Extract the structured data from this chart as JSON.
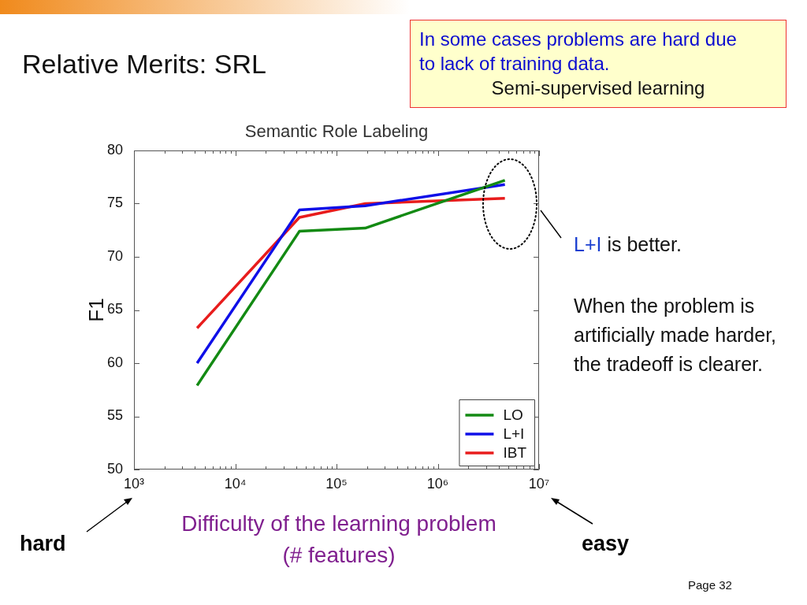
{
  "chart_data": {
    "type": "line",
    "title": "Relative Merits: SRL",
    "subtitle": "Semantic Role Labeling",
    "xlabel": "Difficulty of the learning problem (# features)",
    "ylabel": "F1",
    "x": [
      4200,
      43000,
      192000,
      4600000
    ],
    "series": [
      {
        "name": "LO",
        "color": "#138a13",
        "values": [
          57.9,
          72.4,
          72.7,
          77.2
        ]
      },
      {
        "name": "L+I",
        "color": "#0f0fe8",
        "values": [
          60.0,
          74.4,
          74.8,
          76.8
        ]
      },
      {
        "name": "IBT",
        "color": "#e81c1c",
        "values": [
          63.3,
          73.7,
          75.0,
          75.5
        ]
      }
    ],
    "xlim": [
      1000,
      10000000
    ],
    "xticks": [
      {
        "value": 1000,
        "label": "10³"
      },
      {
        "value": 2000,
        "label": null
      },
      {
        "value": 3000,
        "label": null
      },
      {
        "value": 4000,
        "label": null
      },
      {
        "value": 5000,
        "label": null
      },
      {
        "value": 6000,
        "label": null
      },
      {
        "value": 7000,
        "label": null
      },
      {
        "value": 8000,
        "label": null
      },
      {
        "value": 9000,
        "label": null
      },
      {
        "value": 10000,
        "label": "10⁴"
      },
      {
        "value": 20000,
        "label": null
      },
      {
        "value": 30000,
        "label": null
      },
      {
        "value": 40000,
        "label": null
      },
      {
        "value": 50000,
        "label": null
      },
      {
        "value": 60000,
        "label": null
      },
      {
        "value": 70000,
        "label": null
      },
      {
        "value": 80000,
        "label": null
      },
      {
        "value": 90000,
        "label": null
      },
      {
        "value": 100000,
        "label": "10⁵"
      },
      {
        "value": 200000,
        "label": null
      },
      {
        "value": 300000,
        "label": null
      },
      {
        "value": 400000,
        "label": null
      },
      {
        "value": 500000,
        "label": null
      },
      {
        "value": 600000,
        "label": null
      },
      {
        "value": 700000,
        "label": null
      },
      {
        "value": 800000,
        "label": null
      },
      {
        "value": 900000,
        "label": null
      },
      {
        "value": 1000000,
        "label": "10⁶"
      },
      {
        "value": 2000000,
        "label": null
      },
      {
        "value": 3000000,
        "label": null
      },
      {
        "value": 4000000,
        "label": null
      },
      {
        "value": 5000000,
        "label": null
      },
      {
        "value": 6000000,
        "label": null
      },
      {
        "value": 7000000,
        "label": null
      },
      {
        "value": 8000000,
        "label": null
      },
      {
        "value": 9000000,
        "label": null
      },
      {
        "value": 10000000,
        "label": "10⁷"
      }
    ],
    "ylim": [
      50,
      80
    ],
    "yticks": [
      50,
      55,
      60,
      65,
      70,
      75,
      80
    ],
    "log": "x",
    "grid": false,
    "legend": "bottom right",
    "marker": "none",
    "line_style": "solid",
    "annotations": [
      "In some cases problems are hard due to lack of training data.",
      "Semi-supervised learning",
      "L+I is better.",
      "When the problem is artificially made harder, the tradeoff is clearer.",
      "hard",
      "easy",
      "Page 32"
    ]
  }
}
